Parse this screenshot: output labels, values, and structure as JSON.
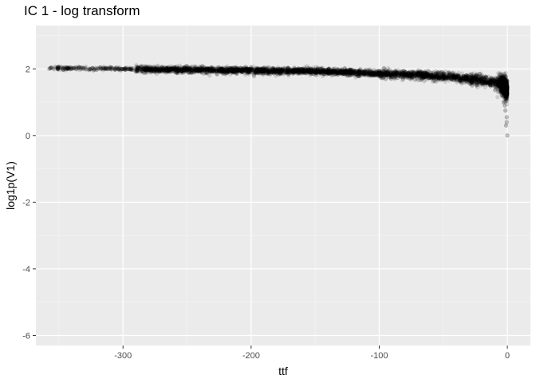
{
  "chart_data": {
    "type": "scatter",
    "title": "IC 1 - log transform",
    "xlabel": "ttf",
    "ylabel": "log1p(V1)",
    "xlim": [
      -368,
      18
    ],
    "ylim": [
      -6.3,
      3.3
    ],
    "x_ticks": [
      -300,
      -200,
      -100,
      0
    ],
    "x_tick_labels": [
      "-300",
      "-200",
      "-100",
      "0"
    ],
    "y_ticks": [
      -6,
      -4,
      -2,
      0,
      2
    ],
    "y_tick_labels": [
      "-6",
      "-4",
      "-2",
      "0",
      "2"
    ],
    "grid": true,
    "panel_background": "#ebebeb",
    "point_color": "#000000",
    "point_alpha": 0.12,
    "series": [
      {
        "trend": {
          "x": [
            -358,
            -350,
            -300,
            -250,
            -200,
            -150,
            -100,
            -75,
            -50,
            -30,
            -20,
            -10,
            -5,
            -2,
            0
          ],
          "y": [
            2.02,
            2.02,
            2.0,
            1.97,
            1.95,
            1.93,
            1.86,
            1.82,
            1.76,
            1.7,
            1.66,
            1.6,
            1.55,
            1.45,
            1.35
          ]
        },
        "outliers": [
          {
            "x": 0,
            "y": 0.0
          },
          {
            "x": -1,
            "y": 0.3
          },
          {
            "x": -0.5,
            "y": 0.55
          },
          {
            "x": -1.5,
            "y": 0.75
          },
          {
            "x": -2,
            "y": 0.9
          },
          {
            "x": -0.5,
            "y": 0.4
          },
          {
            "x": -3,
            "y": 1.0
          }
        ]
      }
    ]
  }
}
